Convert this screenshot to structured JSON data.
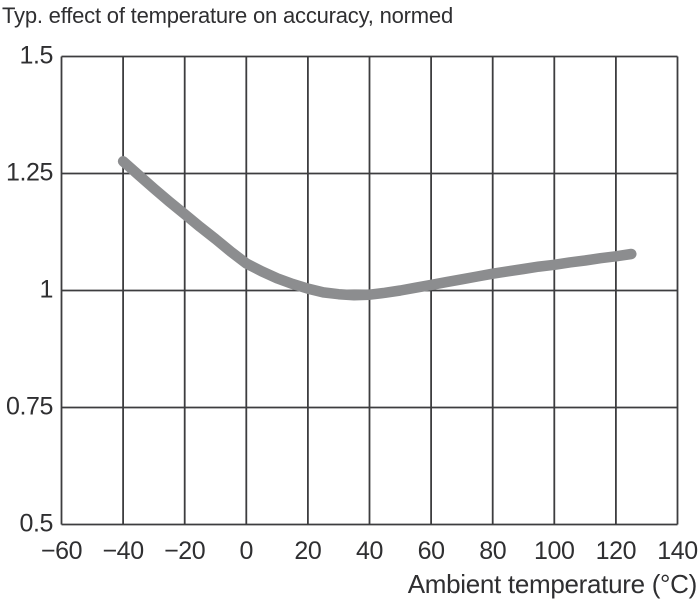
{
  "chart_data": {
    "type": "line",
    "title": "Typ. effect of temperature on accuracy, normed",
    "xlabel": "Ambient temperature (°C)",
    "ylabel": "",
    "xlim": [
      -60,
      140
    ],
    "ylim": [
      0.5,
      1.5
    ],
    "x_ticks": [
      -60,
      -40,
      -20,
      0,
      20,
      40,
      60,
      80,
      100,
      120,
      140
    ],
    "x_tick_labels": [
      "−60",
      "−40",
      "−20",
      "0",
      "20",
      "40",
      "60",
      "80",
      "100",
      "120",
      "140"
    ],
    "y_ticks": [
      0.5,
      0.75,
      1,
      1.25,
      1.5
    ],
    "y_tick_labels": [
      "0.5",
      "0.75",
      "1",
      "1.25",
      "1.5"
    ],
    "grid": true,
    "legend": "none",
    "styles": {
      "grid_color": "#3d3d3f",
      "grid_width": 1.8,
      "text_color": "#2f2f31",
      "background": "#ffffff"
    },
    "series": [
      {
        "color": "#8c8d8f",
        "line_width": 10.5,
        "x": [
          -40,
          -35,
          -30,
          -25,
          -20,
          -15,
          -10,
          -5,
          0,
          5,
          10,
          15,
          20,
          25,
          30,
          35,
          40,
          45,
          50,
          55,
          60,
          65,
          70,
          75,
          80,
          85,
          90,
          95,
          100,
          105,
          110,
          115,
          120,
          125
        ],
        "y": [
          1.276,
          1.247,
          1.218,
          1.19,
          1.163,
          1.136,
          1.11,
          1.083,
          1.058,
          1.041,
          1.026,
          1.014,
          1.004,
          0.996,
          0.992,
          0.99,
          0.991,
          0.995,
          1.0,
          1.006,
          1.012,
          1.018,
          1.024,
          1.03,
          1.036,
          1.041,
          1.046,
          1.051,
          1.055,
          1.06,
          1.064,
          1.069,
          1.073,
          1.078
        ]
      }
    ]
  }
}
